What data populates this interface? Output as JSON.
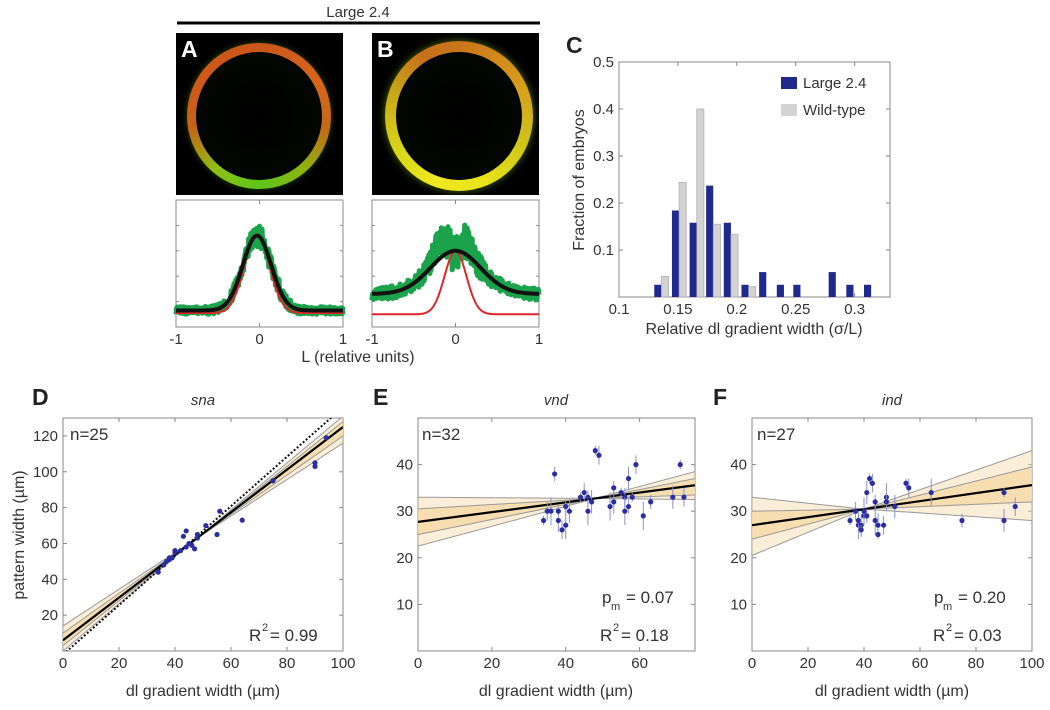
{
  "header": {
    "group_label": "Large 2.4"
  },
  "panels": {
    "a": "A",
    "b": "B",
    "c": "C",
    "d": "D",
    "e": "E",
    "f": "F"
  },
  "colors": {
    "large": "#1f2a8c",
    "wildtype": "#d3d3d3",
    "data_green": "#1aa34a",
    "fit_black": "#111111",
    "fit_red": "#e0262b",
    "band": "#f5d9a8",
    "points": "#2b2f9e"
  },
  "chart_data": [
    {
      "id": "AB",
      "type": "line",
      "xlabel": "L (relative units)",
      "xlim": [
        -1,
        1
      ],
      "xticks": [
        "-1",
        "0",
        "1"
      ],
      "profiles": [
        {
          "panel": "A",
          "black": {
            "baseline": 0.13,
            "peak": 0.72,
            "center": -0.03,
            "sigma": 0.17
          },
          "red": {
            "baseline": 0.11,
            "peak": 0.73,
            "center": -0.03,
            "sigma": 0.15
          }
        },
        {
          "panel": "B",
          "black": {
            "baseline": 0.26,
            "peak": 0.6,
            "center": 0.0,
            "sigma": 0.3
          },
          "red": {
            "baseline": 0.1,
            "peak": 0.6,
            "center": 0.0,
            "sigma": 0.13
          }
        }
      ]
    },
    {
      "id": "C",
      "type": "bar",
      "xlabel": "Relative dl gradient width (σ/L)",
      "ylabel": "Fraction of embryos",
      "xlim": [
        0.1,
        0.33
      ],
      "ylim": [
        0,
        0.5
      ],
      "xticks": [
        0.1,
        0.15,
        0.2,
        0.25,
        0.3
      ],
      "yticks": [
        0.1,
        0.2,
        0.3,
        0.4,
        0.5
      ],
      "legend_position": "top-right",
      "categories": [
        0.136,
        0.151,
        0.166,
        0.18,
        0.195,
        0.21,
        0.225,
        0.24,
        0.254,
        0.269,
        0.284,
        0.299,
        0.314
      ],
      "series": [
        {
          "name": "Large 2.4",
          "values": [
            0.026,
            0.184,
            0.158,
            0.237,
            0.158,
            0.026,
            0.053,
            0.026,
            0.026,
            0,
            0.053,
            0.026,
            0.026
          ]
        },
        {
          "name": "Wild-type",
          "values": [
            0.044,
            0.244,
            0.4,
            0.155,
            0.133,
            0.022,
            0,
            0,
            0,
            0,
            0,
            0,
            0
          ]
        }
      ]
    },
    {
      "id": "D",
      "type": "scatter",
      "title": "sna",
      "xlabel": "dl gradient width (µm)",
      "ylabel": "pattern width (µm)",
      "xlim": [
        0,
        100
      ],
      "ylim": [
        0,
        130
      ],
      "xticks": [
        0,
        20,
        40,
        60,
        80,
        100
      ],
      "yticks": [
        20,
        40,
        60,
        80,
        100,
        120
      ],
      "n_label": "n=25",
      "r2_label": "R",
      "r2_value": "= 0.99",
      "fit": {
        "intercept": 6,
        "slope": 1.19
      },
      "reference_dotted": {
        "intercept": -2,
        "slope": 1.38
      },
      "ci_inner": {
        "at_xmin": [
          3,
          10
        ],
        "at_xmax": [
          120,
          128
        ]
      },
      "ci_outer": {
        "at_xmin": [
          0,
          14
        ],
        "at_xmax": [
          116,
          131
        ]
      },
      "x_mean": 48,
      "points": [
        [
          34,
          44
        ],
        [
          36,
          48
        ],
        [
          37,
          50
        ],
        [
          38,
          52
        ],
        [
          38,
          51
        ],
        [
          39,
          52
        ],
        [
          40,
          55
        ],
        [
          40,
          56
        ],
        [
          42,
          56
        ],
        [
          43,
          64
        ],
        [
          44,
          67
        ],
        [
          44,
          58
        ],
        [
          45,
          60
        ],
        [
          46,
          59
        ],
        [
          47,
          57
        ],
        [
          48,
          65
        ],
        [
          48,
          63
        ],
        [
          51,
          70
        ],
        [
          55,
          65
        ],
        [
          56,
          78
        ],
        [
          64,
          73
        ],
        [
          75,
          95
        ],
        [
          90,
          103
        ],
        [
          90,
          105
        ],
        [
          94,
          119
        ]
      ]
    },
    {
      "id": "E",
      "type": "scatter",
      "title": "vnd",
      "xlabel": "dl gradient width (µm)",
      "xlim": [
        0,
        75
      ],
      "ylim": [
        0,
        50
      ],
      "xticks": [
        0,
        20,
        40,
        60
      ],
      "yticks": [
        10,
        20,
        30,
        40
      ],
      "n_label": "n=32",
      "pm_label": "p",
      "pm_sub": "m",
      "pm_value": "= 0.07",
      "r2_label": "R",
      "r2_value": "= 0.18",
      "fit": {
        "intercept": 27.7,
        "slope": 0.105
      },
      "ci_inner": {
        "at_xmin": [
          25,
          30.5
        ],
        "at_xmax": [
          33.5,
          37
        ]
      },
      "ci_outer": {
        "at_xmin": [
          22.5,
          33
        ],
        "at_xmax": [
          32.5,
          38.5
        ]
      },
      "x_mean": 48,
      "points": [
        [
          34,
          28
        ],
        [
          35,
          30
        ],
        [
          36,
          30
        ],
        [
          37,
          38
        ],
        [
          38,
          28
        ],
        [
          38,
          30
        ],
        [
          39,
          26
        ],
        [
          40,
          27
        ],
        [
          40,
          31
        ],
        [
          41,
          30
        ],
        [
          44,
          33
        ],
        [
          45,
          34
        ],
        [
          46,
          30
        ],
        [
          46,
          33
        ],
        [
          47,
          32
        ],
        [
          48,
          43
        ],
        [
          49,
          42
        ],
        [
          52,
          31
        ],
        [
          53,
          35
        ],
        [
          53,
          32
        ],
        [
          55,
          34
        ],
        [
          56,
          33
        ],
        [
          56,
          30
        ],
        [
          57,
          31
        ],
        [
          57,
          37
        ],
        [
          58,
          33
        ],
        [
          59,
          40
        ],
        [
          61,
          29
        ],
        [
          63,
          32
        ],
        [
          69,
          33
        ],
        [
          71,
          40
        ],
        [
          72,
          33
        ]
      ]
    },
    {
      "id": "F",
      "type": "scatter",
      "title": "ind",
      "xlabel": "dl gradient width (µm)",
      "xlim": [
        0,
        100
      ],
      "ylim": [
        0,
        50
      ],
      "xticks": [
        0,
        20,
        40,
        60,
        80,
        100
      ],
      "yticks": [
        10,
        20,
        30,
        40
      ],
      "n_label": "n=27",
      "pm_label": "p",
      "pm_sub": "m",
      "pm_value": "= 0.20",
      "r2_label": "R",
      "r2_value": "= 0.03",
      "fit": {
        "intercept": 27,
        "slope": 0.086
      },
      "ci_inner": {
        "at_xmin": [
          24,
          30
        ],
        "at_xmax": [
          32,
          39.5
        ]
      },
      "ci_outer": {
        "at_xmin": [
          20.5,
          33
        ],
        "at_xmax": [
          28,
          43
        ]
      },
      "x_mean": 40,
      "points": [
        [
          35,
          28
        ],
        [
          37,
          30
        ],
        [
          38,
          27
        ],
        [
          38,
          28
        ],
        [
          39,
          27
        ],
        [
          39,
          26
        ],
        [
          40,
          29
        ],
        [
          40,
          30
        ],
        [
          41,
          29
        ],
        [
          41,
          34
        ],
        [
          42,
          37
        ],
        [
          43,
          36
        ],
        [
          44,
          28
        ],
        [
          44,
          32
        ],
        [
          45,
          27
        ],
        [
          45,
          25
        ],
        [
          47,
          27
        ],
        [
          48,
          33
        ],
        [
          48,
          32
        ],
        [
          51,
          31
        ],
        [
          55,
          36
        ],
        [
          56,
          35
        ],
        [
          64,
          34
        ],
        [
          75,
          28
        ],
        [
          90,
          28
        ],
        [
          90,
          34
        ],
        [
          94,
          31
        ]
      ]
    }
  ]
}
